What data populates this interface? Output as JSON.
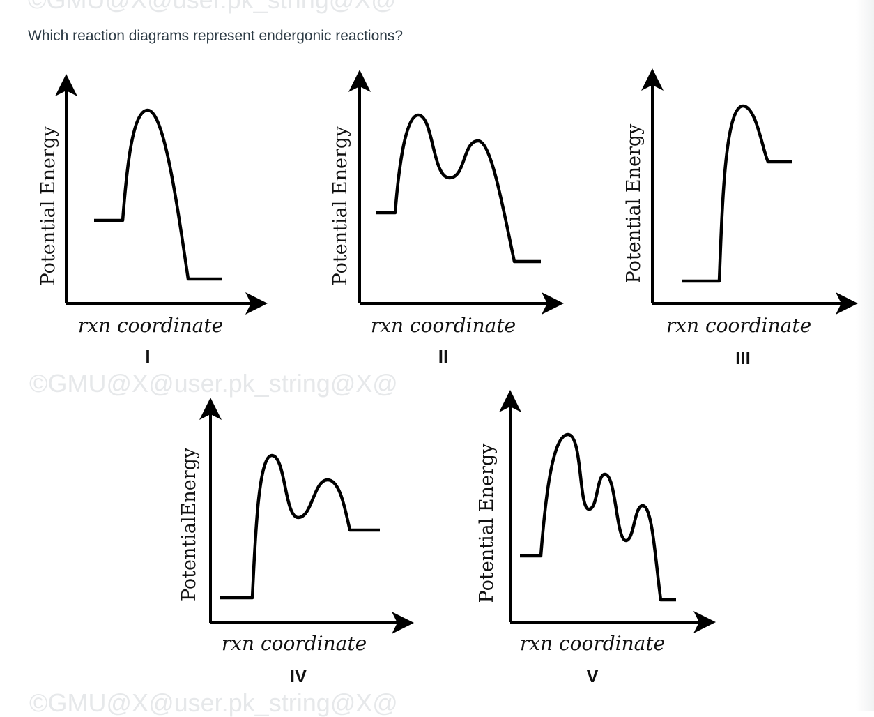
{
  "question": "Which reaction diagrams represent endergonic reactions?",
  "watermark": "©GMU@X@user.pk_string@X@",
  "diagrams": [
    {
      "numeral": "I",
      "ylabel": "Potential Energy",
      "xlabel": "rxn coordinate"
    },
    {
      "numeral": "II",
      "ylabel": "Potential Energy",
      "xlabel": "rxn coordinate"
    },
    {
      "numeral": "III",
      "ylabel": "Potential Energy",
      "xlabel": "rxn coordinate"
    },
    {
      "numeral": "IV",
      "ylabel": "PotentialEnergy",
      "xlabel": "rxn coordinate"
    },
    {
      "numeral": "V",
      "ylabel": "Potential Energy",
      "xlabel": "rxn coordinate"
    }
  ]
}
